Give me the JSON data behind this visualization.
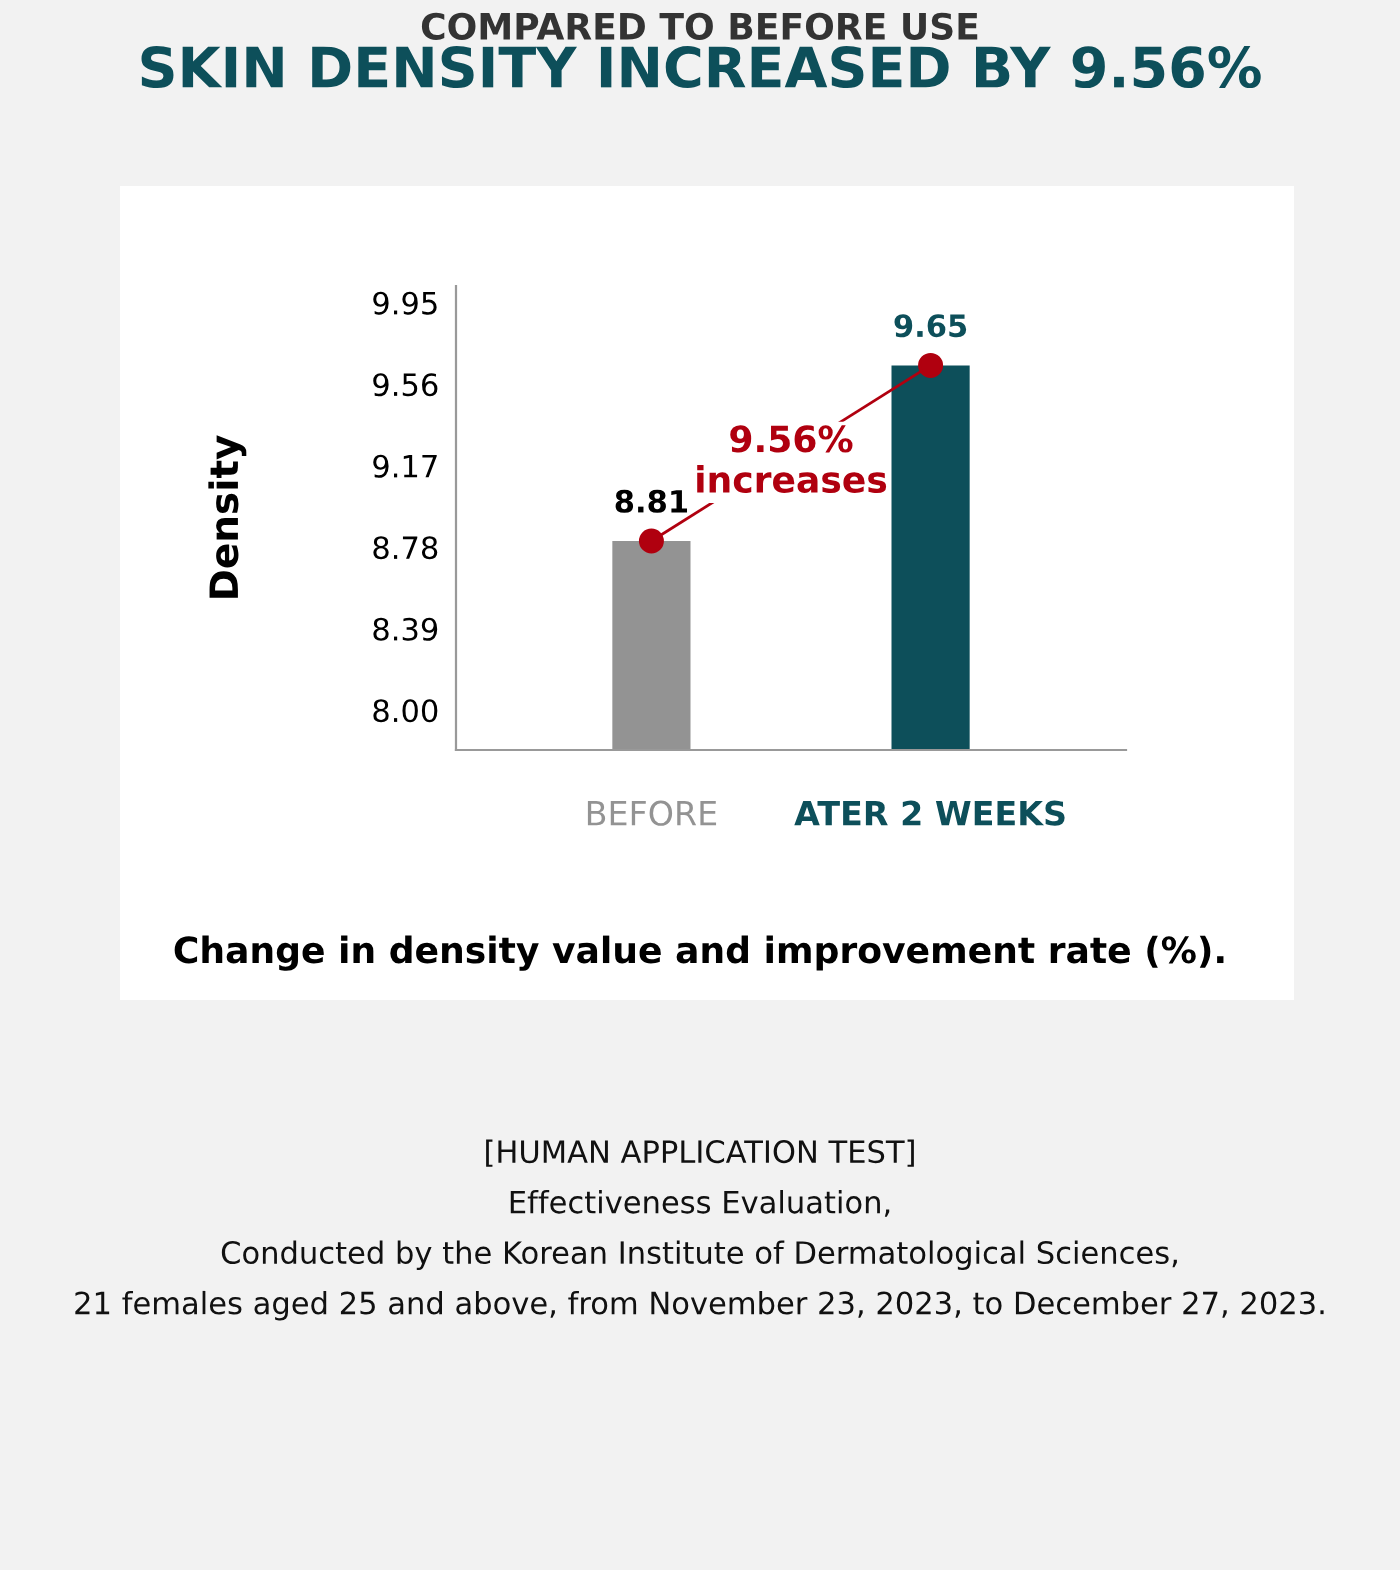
{
  "chart_data": {
    "type": "bar",
    "subtitle": "COMPARED TO BEFORE USE",
    "title": "SKIN DENSITY INCREASED BY 9.56%",
    "ylabel": "Density",
    "xlabel": "Change in density value and improvement rate (%).",
    "categories": [
      "BEFORE",
      "ATER 2 WEEKS"
    ],
    "series": [
      {
        "colors": [
          "#939393",
          "#0d4f5a"
        ],
        "values": [
          8.81,
          9.65
        ],
        "value_labels": [
          "8.81",
          "9.65"
        ]
      },
      {
        "type": "line",
        "color": "#b0000f",
        "values": [
          8.81,
          9.65
        ]
      }
    ],
    "marker": "circle",
    "grid": false,
    "legend": false,
    "ylim": [
      7.81,
      10.03
    ],
    "yticks": [
      {
        "value": 8.0,
        "label": "8.00"
      },
      8.39,
      8.78,
      9.17,
      9.56,
      9.95
    ],
    "annotations": [
      "9.56%\nincreases",
      "[HUMAN APPLICATION TEST]\nEffectiveness Evaluation,\nConducted by the Korean Institute of Dermatological Sciences,\n21 females aged 25 and above, from November 23, 2023, to December 27, 2023."
    ]
  }
}
